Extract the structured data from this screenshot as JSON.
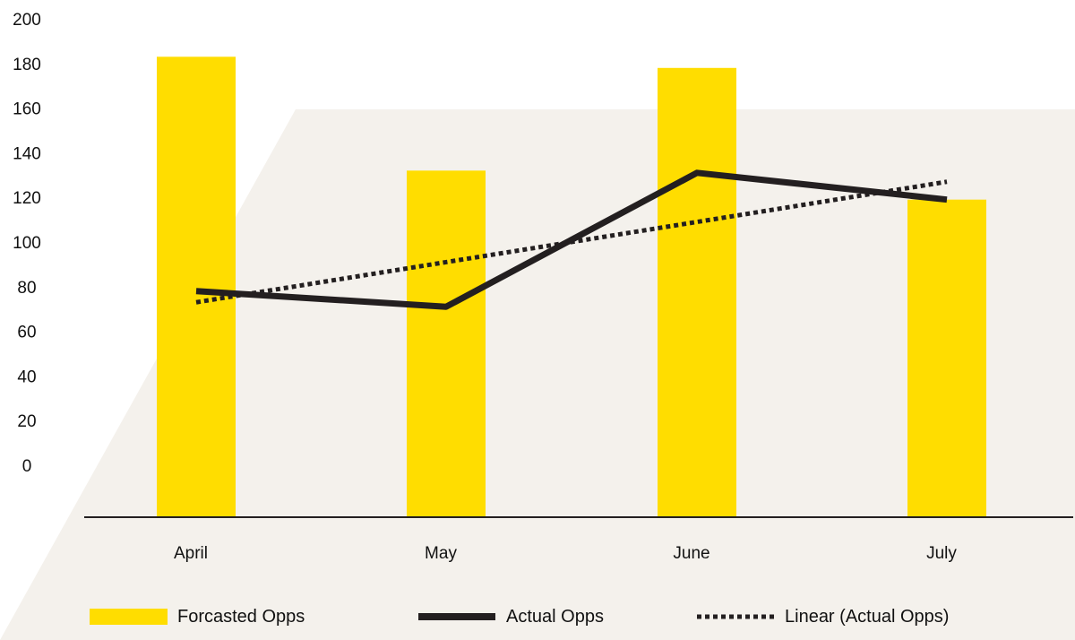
{
  "chart_data": {
    "type": "bar",
    "title": "",
    "xlabel": "",
    "ylabel": "",
    "categories": [
      "April",
      "May",
      "June",
      "July"
    ],
    "yticks": [
      "200",
      "180",
      "160",
      "140",
      "120",
      "100",
      "80",
      "60",
      "40",
      "20",
      "0"
    ],
    "ylim": [
      0,
      200
    ],
    "series": [
      {
        "name": "Forcasted Opps",
        "kind": "bar",
        "color": "#FFDD00",
        "values": [
          183,
          132,
          178,
          119
        ]
      },
      {
        "name": "Actual Opps",
        "kind": "line",
        "color": "#231F20",
        "values": [
          78,
          71,
          131,
          119
        ]
      },
      {
        "name": "Linear (Actual Opps)",
        "kind": "trendline",
        "style": "dotted",
        "color": "#231F20",
        "values": [
          73,
          91,
          109,
          127
        ]
      }
    ],
    "legend_position": "bottom",
    "grid": false,
    "background_color": "#F4F1EC"
  }
}
